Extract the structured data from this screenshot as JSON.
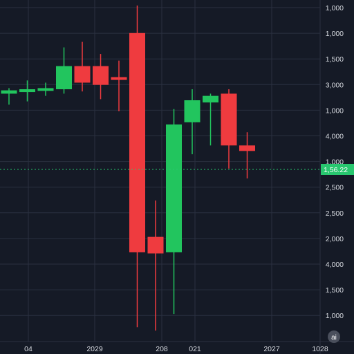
{
  "chart_data": {
    "type": "candlestick",
    "colors": {
      "background": "#151a26",
      "grid": "#2a3040",
      "up": "#22c55e",
      "down": "#ef3b3f",
      "current_price_line": "#28c76f",
      "axis_text": "#d7dae0"
    },
    "y_axis_labels": [
      "1,000",
      "1,000",
      "1,500",
      "3,000",
      "1,000",
      "4,000",
      "1,000",
      "2,500",
      "2,500",
      "2,000",
      "4,000",
      "1,500",
      "1,000"
    ],
    "x_axis_labels": [
      "04",
      "2029",
      "208",
      "021",
      "2027",
      "1028"
    ],
    "current_price": "1,56.22",
    "candles": [
      {
        "o": 3.0,
        "h": 3.05,
        "l": 2.9,
        "c": 3.03
      },
      {
        "o": 3.04,
        "h": 3.12,
        "l": 2.93,
        "c": 3.04
      },
      {
        "o": 3.04,
        "h": 3.1,
        "l": 2.98,
        "c": 3.05
      },
      {
        "o": 3.04,
        "h": 3.42,
        "l": 3.0,
        "c": 3.25
      },
      {
        "o": 3.25,
        "h": 3.47,
        "l": 3.02,
        "c": 3.1
      },
      {
        "o": 3.25,
        "h": 3.36,
        "l": 2.95,
        "c": 3.08
      },
      {
        "o": 3.15,
        "h": 3.3,
        "l": 2.84,
        "c": 3.13
      },
      {
        "o": 3.55,
        "h": 3.8,
        "l": 0.88,
        "c": 1.56
      },
      {
        "o": 1.7,
        "h": 2.03,
        "l": 0.85,
        "c": 1.55
      },
      {
        "o": 1.56,
        "h": 2.86,
        "l": 1.0,
        "c": 2.72
      },
      {
        "o": 2.74,
        "h": 3.04,
        "l": 2.45,
        "c": 2.94
      },
      {
        "o": 2.92,
        "h": 3.0,
        "l": 2.53,
        "c": 2.98
      },
      {
        "o": 3.0,
        "h": 3.04,
        "l": 2.32,
        "c": 2.53
      },
      {
        "o": 2.53,
        "h": 2.65,
        "l": 2.23,
        "c": 2.48
      }
    ],
    "badge": "ai"
  }
}
